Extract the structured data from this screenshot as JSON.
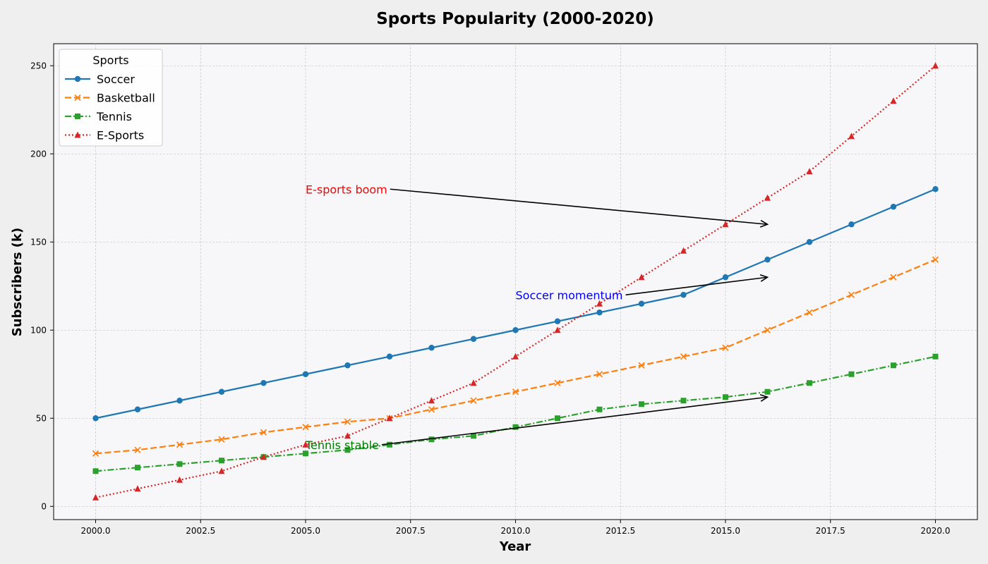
{
  "chart_data": {
    "type": "line",
    "title": "Sports Popularity (2000-2020)",
    "xlabel": "Year",
    "ylabel": "Subscribers (k)",
    "xlim": [
      1999,
      2021
    ],
    "ylim": [
      -7.5,
      262.5
    ],
    "x": [
      2000,
      2001,
      2002,
      2003,
      2004,
      2005,
      2006,
      2007,
      2008,
      2009,
      2010,
      2011,
      2012,
      2013,
      2014,
      2015,
      2016,
      2017,
      2018,
      2019,
      2020
    ],
    "x_ticks": [
      2000.0,
      2002.5,
      2005.0,
      2007.5,
      2010.0,
      2012.5,
      2015.0,
      2017.5,
      2020.0
    ],
    "x_tick_labels": [
      "2000.0",
      "2002.5",
      "2005.0",
      "2007.5",
      "2010.0",
      "2012.5",
      "2015.0",
      "2017.5",
      "2020.0"
    ],
    "y_ticks": [
      0,
      50,
      100,
      150,
      200,
      250
    ],
    "y_tick_labels": [
      "0",
      "50",
      "100",
      "150",
      "200",
      "250"
    ],
    "grid": true,
    "legend": {
      "title": "Sports",
      "position": "top-left"
    },
    "series": [
      {
        "name": "Soccer",
        "color": "#1f77b4",
        "linestyle": "solid",
        "marker": "circle",
        "values": [
          50,
          55,
          60,
          65,
          70,
          75,
          80,
          85,
          90,
          95,
          100,
          105,
          110,
          115,
          120,
          130,
          140,
          150,
          160,
          170,
          180
        ]
      },
      {
        "name": "Basketball",
        "color": "#ff7f0e",
        "linestyle": "dashed",
        "marker": "x",
        "values": [
          30,
          32,
          35,
          38,
          42,
          45,
          48,
          50,
          55,
          60,
          65,
          70,
          75,
          80,
          85,
          90,
          100,
          110,
          120,
          130,
          140
        ]
      },
      {
        "name": "Tennis",
        "color": "#2ca02c",
        "linestyle": "dashdot",
        "marker": "square",
        "values": [
          20,
          22,
          24,
          26,
          28,
          30,
          32,
          35,
          38,
          40,
          45,
          50,
          55,
          58,
          60,
          62,
          65,
          70,
          75,
          80,
          85
        ]
      },
      {
        "name": "E-Sports",
        "color": "#d62728",
        "linestyle": "dotted",
        "marker": "triangle",
        "values": [
          5,
          10,
          15,
          20,
          28,
          35,
          40,
          50,
          60,
          70,
          85,
          100,
          115,
          130,
          145,
          160,
          175,
          190,
          210,
          230,
          250
        ]
      }
    ],
    "annotations": [
      {
        "text": "E-sports boom",
        "color": "#ff0000",
        "text_xy": [
          2005,
          180
        ],
        "arrow_xy": [
          2016,
          160
        ]
      },
      {
        "text": "Soccer momentum",
        "color": "#0000ff",
        "text_xy": [
          2010,
          120
        ],
        "arrow_xy": [
          2016,
          130
        ]
      },
      {
        "text": "Tennis stable",
        "color": "#007a00",
        "text_xy": [
          2005,
          35
        ],
        "arrow_xy": [
          2016,
          62
        ]
      }
    ]
  }
}
